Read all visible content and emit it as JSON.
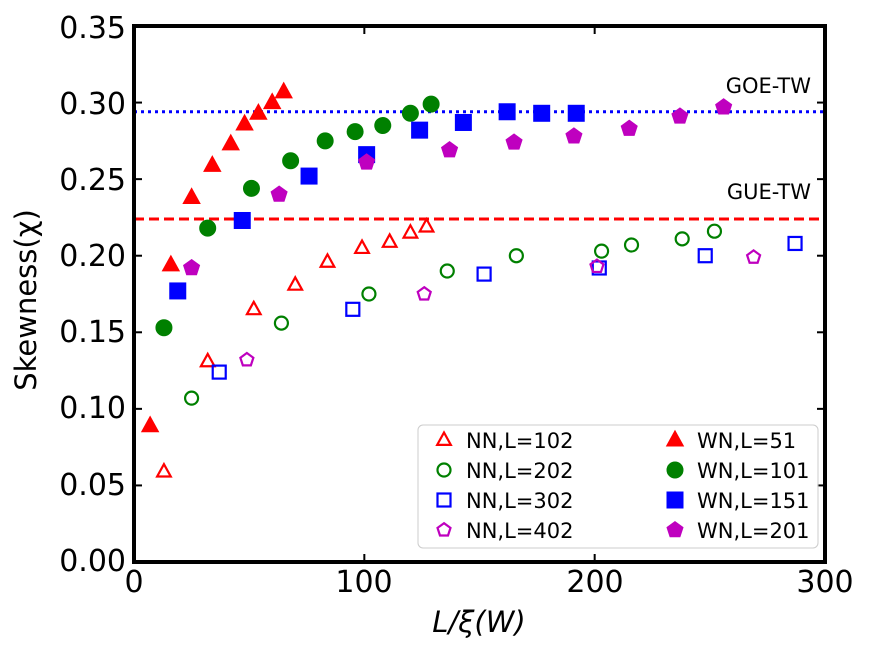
{
  "chart_data": {
    "type": "scatter",
    "xlabel": "L/ξ(W)",
    "ylabel": "Skewness(χ)",
    "xlim": [
      0,
      300
    ],
    "ylim": [
      0,
      0.35
    ],
    "x_ticks": [
      "0",
      "100",
      "200",
      "300"
    ],
    "y_ticks": [
      "0.00",
      "0.05",
      "0.10",
      "0.15",
      "0.20",
      "0.25",
      "0.30",
      "0.35"
    ],
    "grid": false,
    "legend_position": "lower-right",
    "reference_lines": [
      {
        "label": "GOE-TW",
        "y": 0.294,
        "style": "dotted",
        "color": "#0000ff"
      },
      {
        "label": "GUE-TW",
        "y": 0.224,
        "style": "dashed",
        "color": "#ff0000"
      }
    ],
    "series": [
      {
        "name": "NN,L=102",
        "marker": "triangle",
        "filled": false,
        "color": "#ff0000",
        "x": [
          13,
          32,
          52,
          70,
          84,
          99,
          111,
          120,
          127
        ],
        "y": [
          0.059,
          0.131,
          0.165,
          0.181,
          0.196,
          0.205,
          0.209,
          0.215,
          0.219
        ]
      },
      {
        "name": "NN,L=202",
        "marker": "circle",
        "filled": false,
        "color": "#008000",
        "x": [
          25,
          64,
          102,
          136,
          166,
          203,
          216,
          238,
          252
        ],
        "y": [
          0.107,
          0.156,
          0.175,
          0.19,
          0.2,
          0.203,
          0.207,
          0.211,
          0.216
        ]
      },
      {
        "name": "NN,L=302",
        "marker": "square",
        "filled": false,
        "color": "#0000ff",
        "x": [
          37,
          95,
          152,
          202,
          248,
          287
        ],
        "y": [
          0.124,
          0.165,
          0.188,
          0.192,
          0.2,
          0.208
        ]
      },
      {
        "name": "NN,L=402",
        "marker": "pentagon",
        "filled": false,
        "color": "#bf00bf",
        "x": [
          49,
          126,
          201,
          269
        ],
        "y": [
          0.132,
          0.175,
          0.193,
          0.199
        ]
      },
      {
        "name": "WN,L=51",
        "marker": "triangle",
        "filled": true,
        "color": "#ff0000",
        "x": [
          7,
          16,
          25,
          34,
          42,
          48,
          54,
          60,
          65
        ],
        "y": [
          0.089,
          0.194,
          0.238,
          0.259,
          0.273,
          0.286,
          0.293,
          0.3,
          0.307
        ]
      },
      {
        "name": "WN,L=101",
        "marker": "circle",
        "filled": true,
        "color": "#008000",
        "x": [
          13,
          32,
          51,
          68,
          83,
          96,
          108,
          120,
          129
        ],
        "y": [
          0.153,
          0.218,
          0.244,
          0.262,
          0.275,
          0.281,
          0.285,
          0.293,
          0.299
        ]
      },
      {
        "name": "WN,L=151",
        "marker": "square",
        "filled": true,
        "color": "#0000ff",
        "x": [
          19,
          47,
          76,
          101,
          124,
          143,
          162,
          177,
          192
        ],
        "y": [
          0.177,
          0.223,
          0.252,
          0.266,
          0.282,
          0.287,
          0.294,
          0.293,
          0.293
        ]
      },
      {
        "name": "WN,L=201",
        "marker": "pentagon",
        "filled": true,
        "color": "#bf00bf",
        "x": [
          25,
          63,
          101,
          137,
          165,
          191,
          215,
          237,
          256
        ],
        "y": [
          0.192,
          0.24,
          0.261,
          0.269,
          0.274,
          0.278,
          0.283,
          0.291,
          0.297
        ]
      }
    ]
  }
}
